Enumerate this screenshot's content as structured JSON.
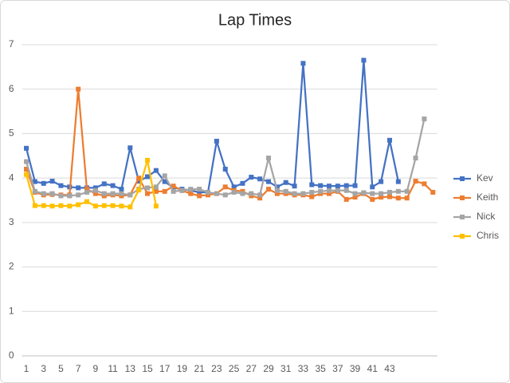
{
  "chart_data": {
    "type": "line",
    "title": "Lap Times",
    "categories": [
      1,
      null,
      3,
      null,
      5,
      null,
      7,
      null,
      9,
      null,
      11,
      null,
      13,
      null,
      15,
      null,
      17,
      null,
      19,
      null,
      21,
      null,
      23,
      null,
      25,
      null,
      27,
      null,
      29,
      null,
      31,
      null,
      33,
      null,
      35,
      null,
      37,
      null,
      39,
      null,
      41,
      null,
      43,
      null,
      null,
      null,
      null,
      null
    ],
    "series": [
      {
        "name": "Kev",
        "color": "#4472c4",
        "values": [
          4.67,
          3.92,
          3.88,
          3.93,
          3.83,
          3.8,
          3.78,
          3.78,
          3.78,
          3.87,
          3.83,
          3.75,
          4.68,
          3.93,
          4.03,
          4.17,
          3.92,
          3.78,
          3.75,
          3.72,
          3.68,
          3.68,
          4.83,
          4.2,
          3.8,
          3.88,
          4.02,
          3.98,
          3.92,
          3.8,
          3.9,
          3.82,
          6.58,
          3.85,
          3.83,
          3.82,
          3.82,
          3.83,
          3.83,
          6.65,
          3.8,
          3.92,
          4.85,
          3.92,
          null,
          null,
          null,
          null
        ]
      },
      {
        "name": "Keith",
        "color": "#ed7d31",
        "values": [
          4.2,
          3.68,
          3.62,
          3.63,
          3.62,
          3.62,
          6.0,
          3.75,
          3.65,
          3.6,
          3.62,
          3.6,
          3.62,
          4.0,
          3.65,
          3.7,
          3.7,
          3.82,
          3.72,
          3.65,
          3.6,
          3.62,
          3.65,
          3.8,
          3.72,
          3.7,
          3.6,
          3.55,
          3.75,
          3.65,
          3.65,
          3.62,
          3.62,
          3.58,
          3.65,
          3.65,
          3.7,
          3.52,
          3.57,
          3.65,
          3.52,
          3.57,
          3.58,
          3.55,
          3.55,
          3.93,
          3.87,
          3.68
        ]
      },
      {
        "name": "Nick",
        "color": "#a5a5a5",
        "values": [
          4.37,
          3.7,
          3.65,
          3.65,
          3.6,
          3.6,
          3.62,
          3.68,
          3.72,
          3.65,
          3.65,
          3.65,
          3.62,
          3.75,
          3.78,
          3.8,
          4.05,
          3.7,
          3.72,
          3.75,
          3.75,
          3.68,
          3.65,
          3.62,
          3.68,
          3.65,
          3.65,
          3.62,
          4.45,
          3.72,
          3.7,
          3.65,
          3.65,
          3.68,
          3.7,
          3.72,
          3.72,
          3.72,
          3.65,
          3.67,
          3.65,
          3.65,
          3.68,
          3.7,
          3.7,
          4.45,
          5.33,
          null
        ]
      },
      {
        "name": "Chris",
        "color": "#ffc000",
        "values": [
          4.08,
          3.38,
          3.38,
          3.37,
          3.38,
          3.37,
          3.4,
          3.47,
          3.37,
          3.38,
          3.38,
          3.37,
          3.35,
          3.73,
          4.4,
          3.37,
          null,
          null,
          null,
          null,
          null,
          null,
          null,
          null,
          null,
          null,
          null,
          null,
          null,
          null,
          null,
          null,
          null,
          null,
          null,
          null,
          null,
          null,
          null,
          null,
          null,
          null,
          null,
          null,
          null,
          null,
          null,
          null
        ]
      }
    ],
    "ylim": [
      0,
      7
    ],
    "yticks": [
      0,
      1,
      2,
      3,
      4,
      5,
      6,
      7
    ],
    "grid": true,
    "legend": "right"
  }
}
